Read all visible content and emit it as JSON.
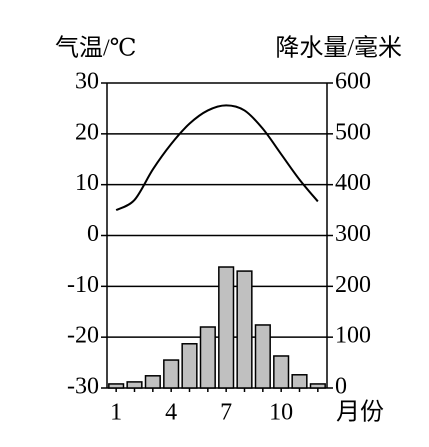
{
  "chart_data": {
    "type": "bar",
    "y_label": "气温/℃",
    "y2_label": "降水量/毫米",
    "x_label": "月份",
    "categories": [
      "1",
      null,
      null,
      "4",
      null,
      null,
      "7",
      null,
      null,
      "10",
      null,
      null
    ],
    "series": [
      {
        "type": "line",
        "color": "#000000",
        "values": [
          5,
          7,
          13,
          18,
          22,
          24.6,
          25.6,
          24.6,
          21,
          16,
          11,
          6.7
        ]
      },
      {
        "type": "bar",
        "axis": "y2",
        "color": "#c0c0c0",
        "values": [
          8,
          12,
          24,
          55,
          87,
          120,
          238,
          230,
          124,
          63,
          26,
          8
        ]
      }
    ],
    "ylim": [
      -30,
      30
    ],
    "yticks": [
      -30,
      -20,
      -10,
      0,
      10,
      20,
      30
    ],
    "y2lim": [
      0,
      600
    ],
    "y2ticks": [
      0,
      100,
      200,
      300,
      400,
      500,
      600
    ],
    "grid": true
  }
}
